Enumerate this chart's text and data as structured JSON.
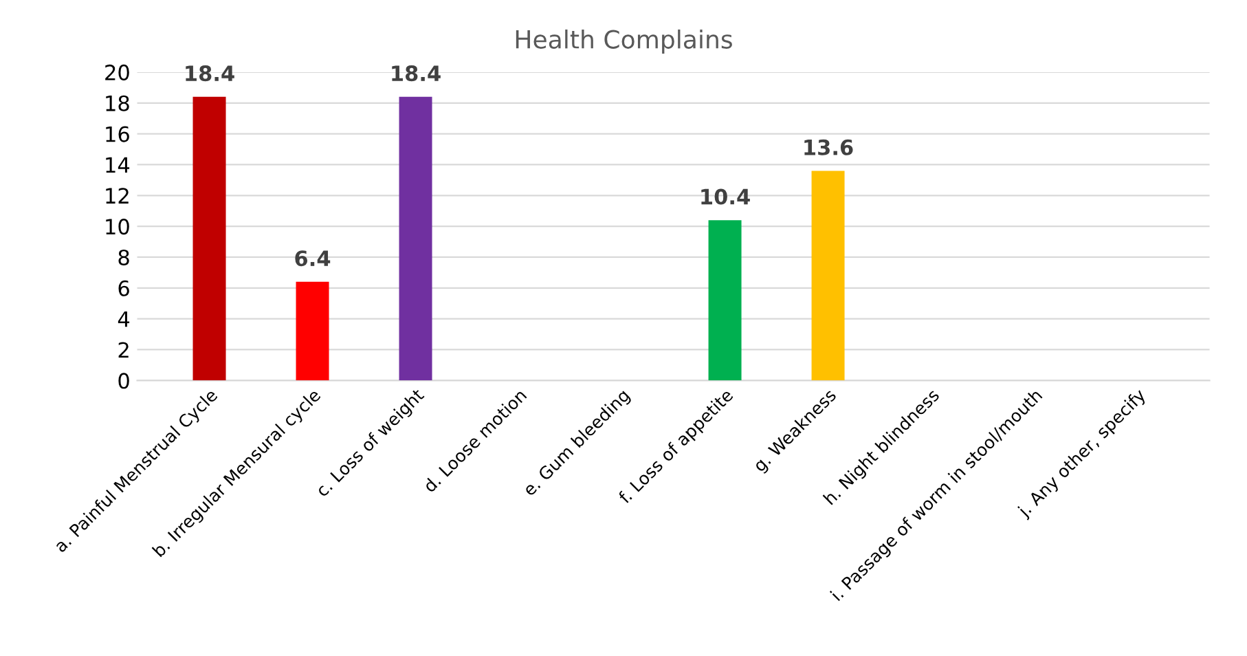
{
  "chart_data": {
    "type": "bar",
    "title": "Health Complains",
    "categories": [
      "a. Painful Menstrual Cycle",
      "b. Irregular Mensural cycle",
      "c. Loss of weight",
      "d. Loose motion",
      "e. Gum bleeding",
      "f. Loss of appetite",
      "g. Weakness",
      "h. Night blindness",
      "i. Passage of worm in stool/mouth",
      "j. Any other, specify"
    ],
    "values": [
      18.4,
      6.4,
      18.4,
      null,
      null,
      10.4,
      13.6,
      null,
      null,
      null
    ],
    "colors": [
      "#c00000",
      "#ff0000",
      "#7030a0",
      null,
      null,
      "#00b050",
      "#ffc000",
      null,
      null,
      null
    ],
    "ylim": [
      0,
      20
    ],
    "yticks": [
      0,
      2,
      4,
      6,
      8,
      10,
      12,
      14,
      16,
      18,
      20
    ],
    "grid": "y",
    "data_labels": true
  }
}
